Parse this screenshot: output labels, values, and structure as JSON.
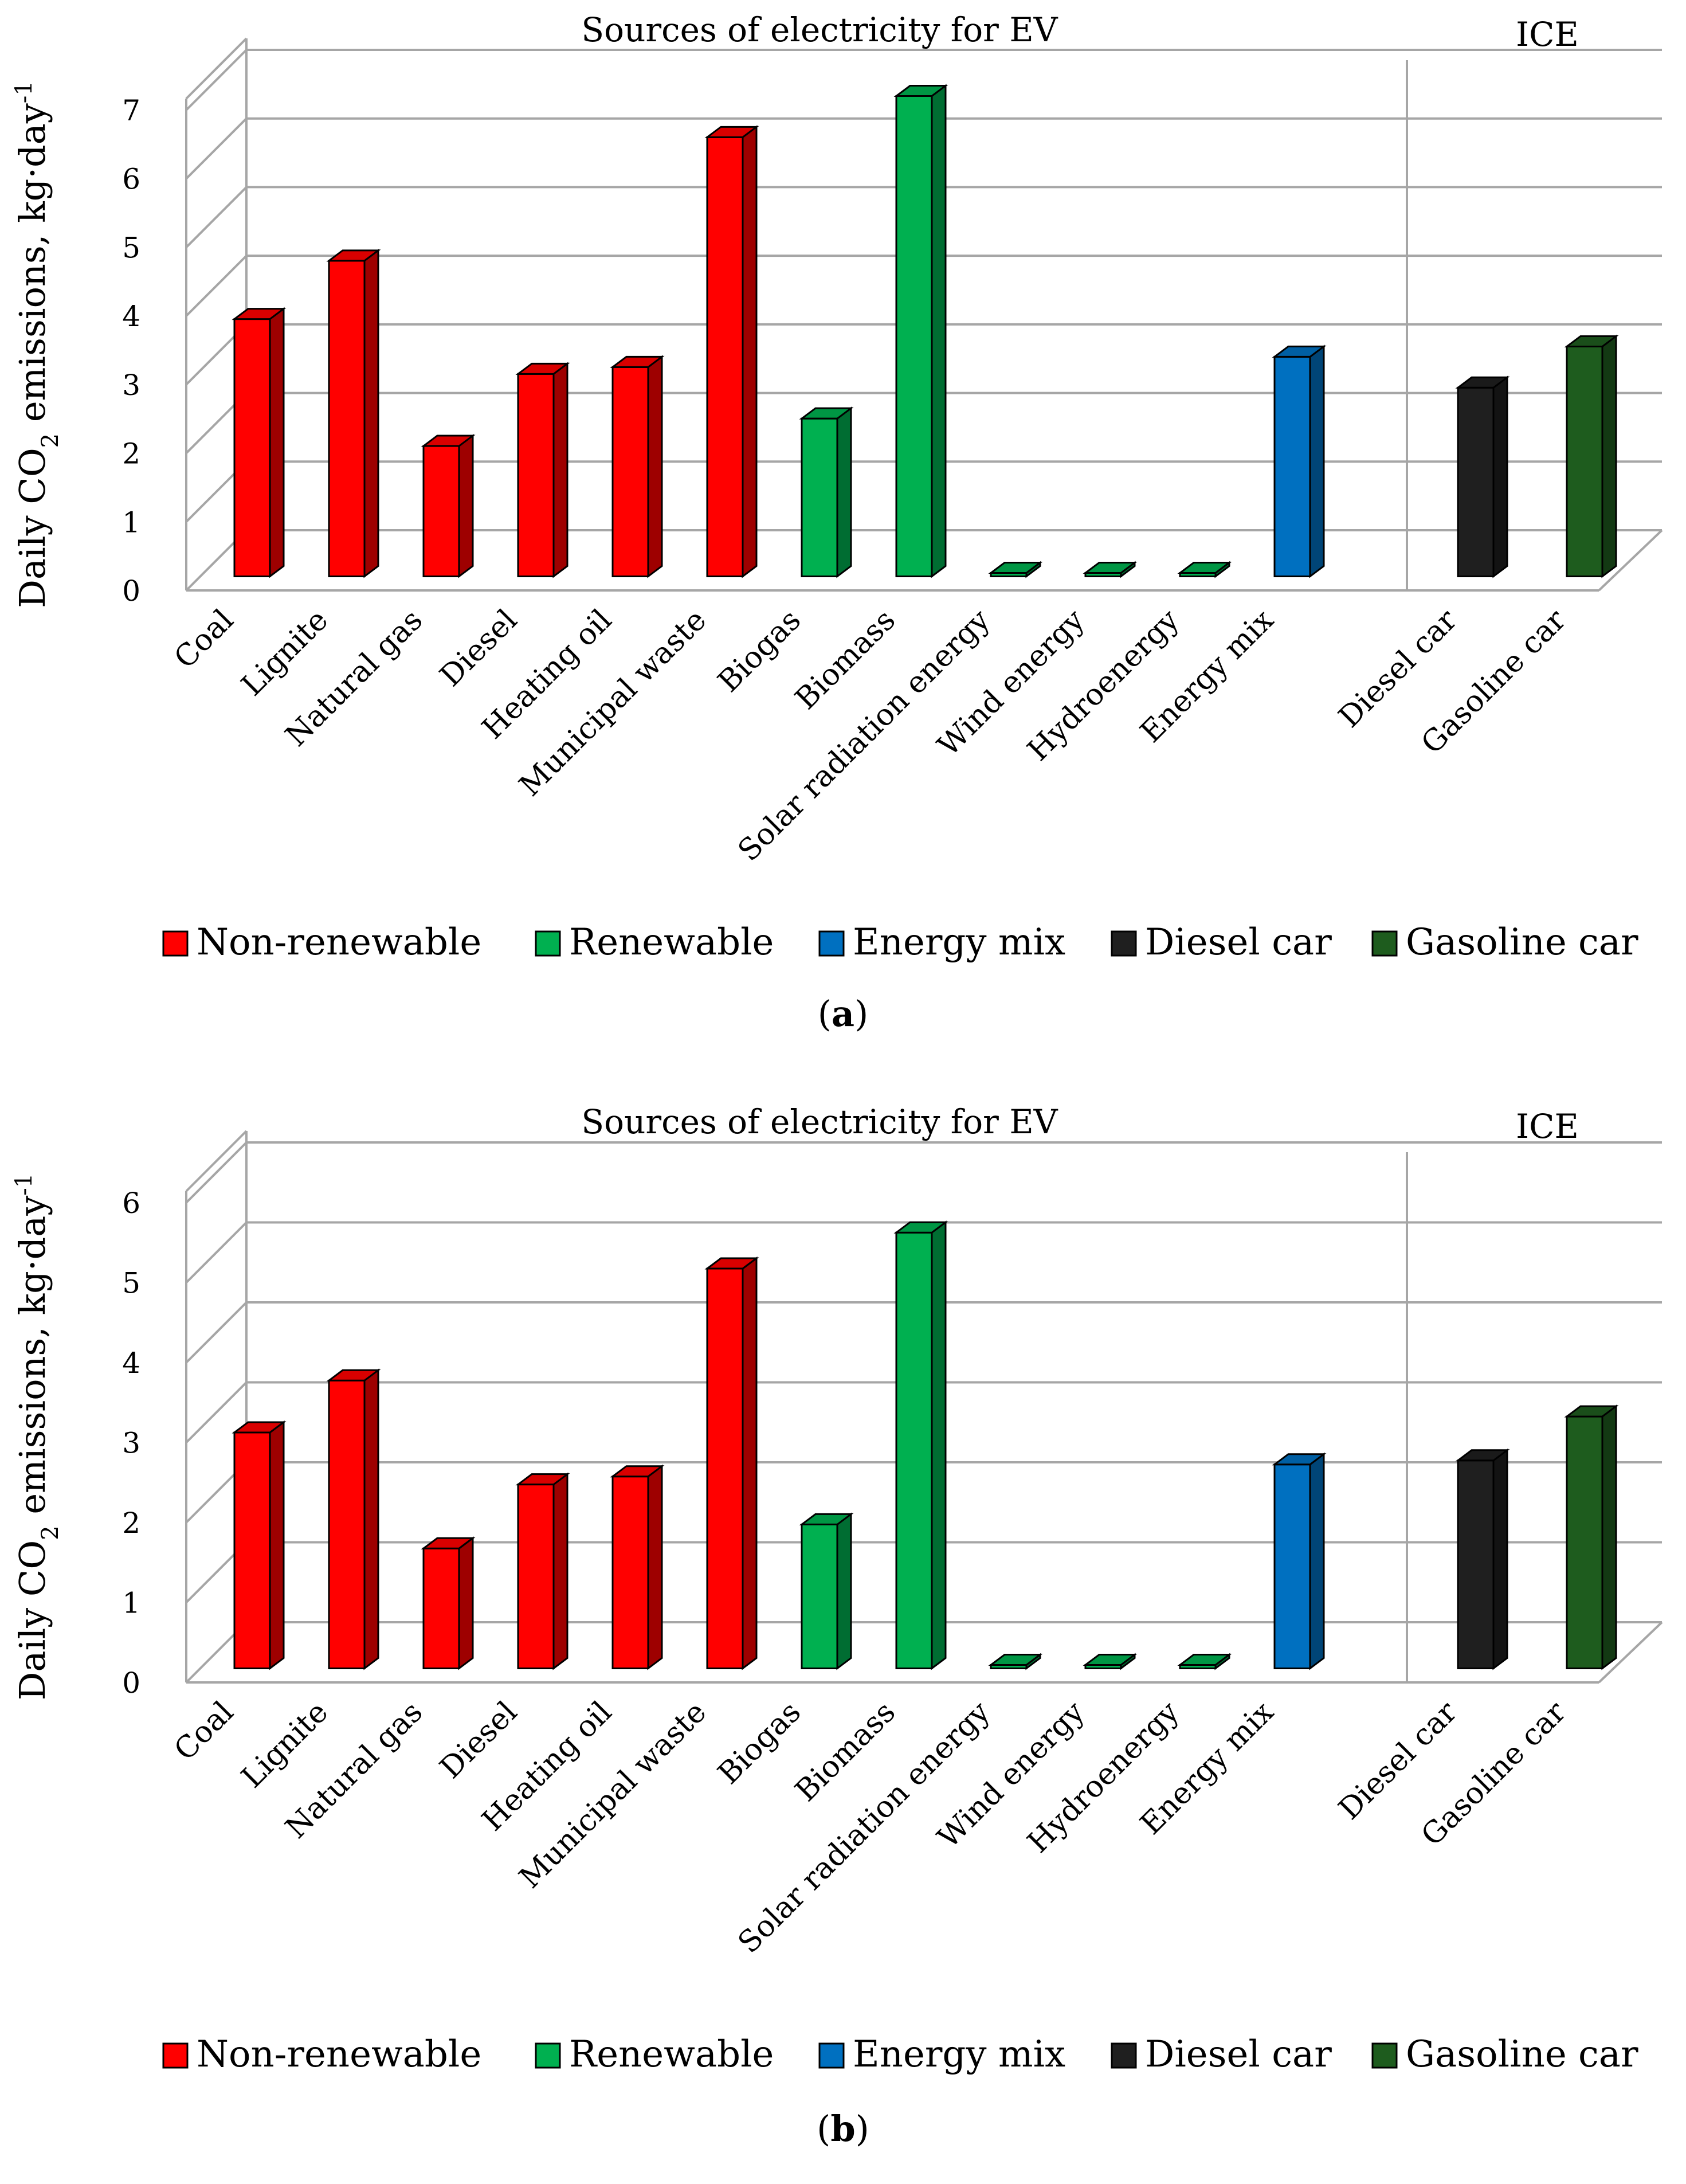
{
  "legend_items": [
    {
      "label": "Non-renewable",
      "color": "#ff0000"
    },
    {
      "label": "Renewable",
      "color": "#00b050"
    },
    {
      "label": "Energy mix",
      "color": "#0070c0"
    },
    {
      "label": "Diesel car",
      "color": "#1f1f1f"
    },
    {
      "label": "Gasoline car",
      "color": "#1e5c1e"
    }
  ],
  "chart_data": [
    {
      "panel": "a",
      "caption": "a",
      "type": "bar",
      "title_ev": "Sources of electricity for EV",
      "title_ice": "ICE",
      "ylabel_main": "Daily CO",
      "ylabel_sub": "2",
      "ylabel_rest": " emissions, kg·day",
      "ylabel_sup": "-1",
      "ylim": [
        0,
        7
      ],
      "yticks": [
        "0",
        "1",
        "2",
        "3",
        "4",
        "5",
        "6",
        "7"
      ],
      "categories": [
        "Coal",
        "Lignite",
        "Natural gas",
        "Diesel",
        "Heating oil",
        "Municipal waste",
        "Biogas",
        "Biomass",
        "Solar radiation energy",
        "Wind energy",
        "Hydroenergy",
        "Energy mix",
        "Diesel car",
        "Gasoline car"
      ],
      "values": [
        3.75,
        4.6,
        1.9,
        2.95,
        3.05,
        6.4,
        2.3,
        7.0,
        0,
        0,
        0,
        3.2,
        2.75,
        3.35
      ],
      "groups": [
        "Non-renewable",
        "Non-renewable",
        "Non-renewable",
        "Non-renewable",
        "Non-renewable",
        "Non-renewable",
        "Renewable",
        "Renewable",
        "Renewable",
        "Renewable",
        "Renewable",
        "Energy mix",
        "Diesel car",
        "Gasoline car"
      ]
    },
    {
      "panel": "b",
      "caption": "b",
      "type": "bar",
      "title_ev": "Sources of electricity for EV",
      "title_ice": "ICE",
      "ylabel_main": "Daily CO",
      "ylabel_sub": "2",
      "ylabel_rest": " emissions, kg·day",
      "ylabel_sup": "-1",
      "ylim": [
        0,
        6
      ],
      "yticks": [
        "0",
        "1",
        "2",
        "3",
        "4",
        "5",
        "6"
      ],
      "categories": [
        "Coal",
        "Lignite",
        "Natural gas",
        "Diesel",
        "Heating oil",
        "Municipal waste",
        "Biogas",
        "Biomass",
        "Solar radiation energy",
        "Wind energy",
        "Hydroenergy",
        "Energy mix",
        "Diesel car",
        "Gasoline car"
      ],
      "values": [
        2.95,
        3.6,
        1.5,
        2.3,
        2.4,
        5.0,
        1.8,
        5.45,
        0,
        0,
        0,
        2.55,
        2.6,
        3.15
      ],
      "groups": [
        "Non-renewable",
        "Non-renewable",
        "Non-renewable",
        "Non-renewable",
        "Non-renewable",
        "Non-renewable",
        "Renewable",
        "Renewable",
        "Renewable",
        "Renewable",
        "Renewable",
        "Energy mix",
        "Diesel car",
        "Gasoline car"
      ]
    }
  ]
}
